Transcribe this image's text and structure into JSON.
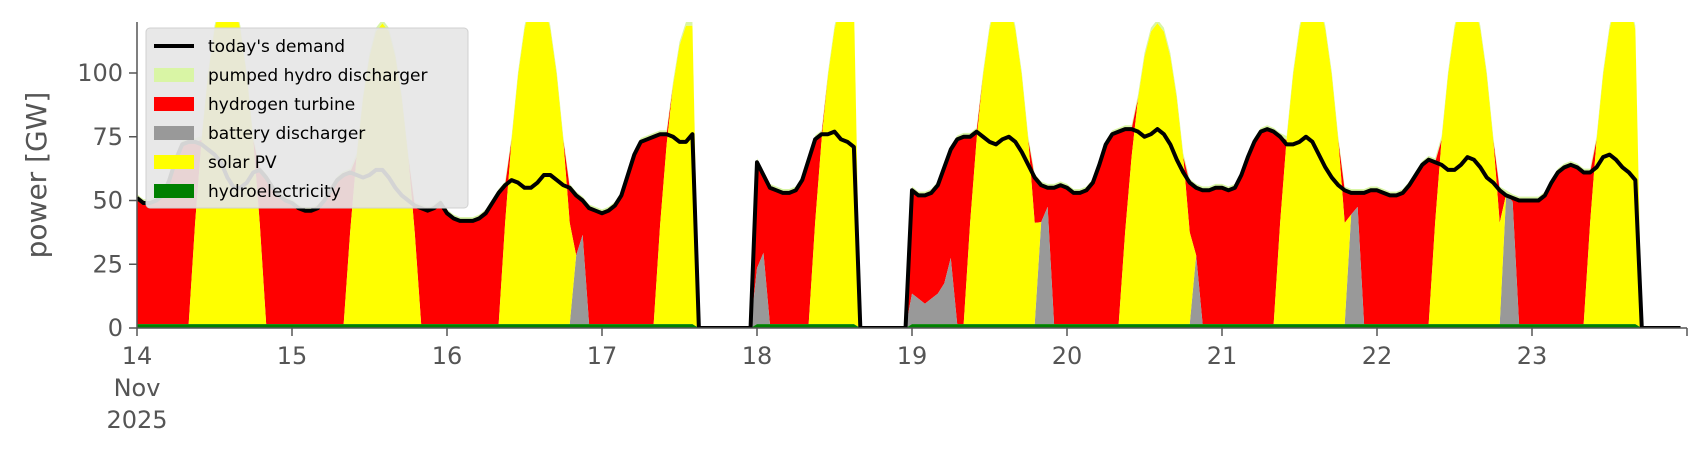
{
  "colors": {
    "demand": "#000000",
    "pumped_hydro": "#d9f5a5",
    "hydrogen": "#ff0000",
    "battery": "#999999",
    "solar": "#ffff00",
    "hydro": "#008000",
    "axis": "#555555",
    "legend_bg": "#e6e6e6"
  },
  "chart_data": {
    "type": "area",
    "ylabel": "power [GW]",
    "ylim": [
      0,
      120
    ],
    "xlim": [
      0,
      10
    ],
    "y_ticks": [
      0,
      25,
      50,
      75,
      100
    ],
    "y_tick_labels": [
      "0",
      "25",
      "50",
      "75",
      "100"
    ],
    "x_ticks": [
      0,
      1,
      2,
      3,
      4,
      5,
      6,
      7,
      8,
      9,
      10
    ],
    "x_tick_labels": [
      "14",
      "15",
      "16",
      "17",
      "18",
      "19",
      "20",
      "21",
      "22",
      "23",
      ""
    ],
    "x_tick_sublabels": [
      "Nov",
      "2025"
    ],
    "legend_position": "upper-left",
    "legend": [
      {
        "key": "demand",
        "label": "today's demand",
        "style": "line"
      },
      {
        "key": "pumped_hydro",
        "label": "pumped hydro discharger",
        "style": "patch"
      },
      {
        "key": "hydrogen",
        "label": "hydrogen turbine",
        "style": "patch"
      },
      {
        "key": "battery",
        "label": "battery discharger",
        "style": "patch"
      },
      {
        "key": "solar",
        "label": "solar PV",
        "style": "patch"
      },
      {
        "key": "hydro",
        "label": "hydroelectricity",
        "style": "patch"
      }
    ],
    "days": [
      {
        "day": "14",
        "x0": 0,
        "demand": [
          51,
          49,
          49,
          50,
          52,
          58,
          66,
          72,
          73,
          73,
          72,
          70,
          68,
          65,
          59,
          55,
          55,
          57,
          61,
          62,
          59,
          55,
          52,
          50
        ],
        "battery": [
          0,
          0,
          0,
          0,
          0,
          0,
          0,
          0,
          0,
          0,
          0,
          0,
          0,
          0,
          14,
          40,
          44,
          45,
          44,
          0,
          0,
          0,
          0,
          0
        ],
        "solar_peak": 130,
        "solar_start": 8,
        "solar_end": 20
      },
      {
        "day": "15",
        "x0": 1,
        "demand": [
          49,
          47,
          46,
          46,
          47,
          50,
          54,
          58,
          60,
          61,
          60,
          59,
          60,
          62,
          62,
          59,
          55,
          52,
          50,
          48,
          47,
          46,
          47,
          49
        ],
        "battery": [
          0,
          0,
          0,
          0,
          0,
          0,
          0,
          0,
          0,
          0,
          0,
          0,
          0,
          0,
          10,
          12,
          12,
          14,
          20,
          27,
          0,
          0,
          0,
          0
        ],
        "solar_peak": 118,
        "solar_start": 8,
        "solar_end": 20
      },
      {
        "day": "16",
        "x0": 2,
        "demand": [
          45,
          43,
          42,
          42,
          42,
          43,
          45,
          49,
          53,
          56,
          58,
          57,
          55,
          55,
          57,
          60,
          60,
          58,
          56,
          55,
          52,
          50,
          47,
          46
        ],
        "battery": [
          0,
          0,
          0,
          0,
          0,
          0,
          0,
          0,
          0,
          0,
          0,
          0,
          0,
          0,
          5,
          22,
          24,
          24,
          28,
          37,
          27,
          35,
          0,
          0
        ],
        "solar_peak": 130,
        "solar_start": 8,
        "solar_end": 20
      },
      {
        "day": "17",
        "x0": 3,
        "demand": [
          45,
          46,
          48,
          52,
          60,
          68,
          73,
          74,
          75,
          76,
          76,
          75,
          73,
          73,
          76,
          0,
          0,
          0,
          0,
          0,
          0,
          0,
          0,
          0
        ],
        "battery": [
          0,
          0,
          0,
          0,
          0,
          0,
          0,
          0,
          0,
          0,
          0,
          0,
          0,
          15,
          16,
          0,
          0,
          0,
          0,
          0,
          0,
          0,
          0,
          0
        ],
        "solar_peak": 118,
        "solar_start": 8,
        "solar_end": 19
      },
      {
        "day": "18",
        "x0": 4,
        "demand": [
          65,
          60,
          55,
          54,
          53,
          53,
          54,
          58,
          66,
          74,
          76,
          76,
          77,
          74,
          73,
          71,
          0,
          0,
          0,
          0,
          0,
          0,
          0,
          0
        ],
        "battery": [
          22,
          28,
          0,
          0,
          0,
          0,
          0,
          0,
          0,
          0,
          0,
          0,
          0,
          0,
          0,
          0,
          0,
          0,
          0,
          0,
          0,
          0,
          0,
          0
        ],
        "solar_peak": 130,
        "solar_start": 8,
        "solar_end": 20
      },
      {
        "day": "19",
        "x0": 5,
        "demand": [
          54,
          52,
          52,
          53,
          56,
          63,
          70,
          74,
          75,
          75,
          77,
          75,
          73,
          72,
          74,
          75,
          73,
          69,
          64,
          59,
          56,
          55,
          55,
          56
        ],
        "battery": [
          12,
          10,
          8,
          10,
          12,
          16,
          26,
          0,
          0,
          0,
          0,
          0,
          0,
          0,
          45,
          38,
          38,
          37,
          38,
          39,
          40,
          46,
          0,
          0
        ],
        "solar_peak": 130,
        "solar_start": 8,
        "solar_end": 20
      },
      {
        "day": "20",
        "x0": 6,
        "demand": [
          55,
          53,
          53,
          54,
          57,
          64,
          72,
          76,
          77,
          78,
          78,
          77,
          75,
          76,
          78,
          76,
          72,
          66,
          61,
          57,
          55,
          54,
          54,
          55
        ],
        "battery": [
          0,
          0,
          0,
          0,
          0,
          0,
          0,
          0,
          0,
          0,
          0,
          0,
          0,
          0,
          14,
          14,
          13,
          12,
          13,
          18,
          27,
          0,
          0,
          0
        ],
        "solar_peak": 118,
        "solar_start": 8,
        "solar_end": 20
      },
      {
        "day": "21",
        "x0": 7,
        "demand": [
          55,
          54,
          55,
          60,
          67,
          73,
          77,
          78,
          77,
          75,
          72,
          72,
          73,
          75,
          73,
          68,
          63,
          59,
          56,
          54,
          53,
          53,
          53,
          54
        ],
        "battery": [
          0,
          0,
          0,
          0,
          0,
          0,
          0,
          0,
          0,
          0,
          0,
          0,
          0,
          0,
          48,
          46,
          50,
          52,
          49,
          47,
          43,
          46,
          0,
          0
        ],
        "solar_peak": 130,
        "solar_start": 8,
        "solar_end": 20
      },
      {
        "day": "22",
        "x0": 8,
        "demand": [
          54,
          53,
          52,
          52,
          53,
          56,
          60,
          64,
          66,
          65,
          64,
          62,
          62,
          64,
          67,
          66,
          63,
          59,
          57,
          54,
          52,
          51,
          50,
          50
        ],
        "battery": [
          0,
          0,
          0,
          0,
          0,
          0,
          0,
          0,
          0,
          0,
          0,
          0,
          0,
          0,
          52,
          55,
          60,
          54,
          52,
          50,
          51,
          48,
          0,
          0
        ],
        "solar_peak": 130,
        "solar_start": 8,
        "solar_end": 20
      },
      {
        "day": "23",
        "x0": 9,
        "demand": [
          50,
          50,
          52,
          57,
          61,
          63,
          64,
          63,
          61,
          61,
          63,
          67,
          68,
          66,
          63,
          61,
          58,
          0,
          0,
          0,
          0,
          0,
          0,
          0
        ],
        "battery": [
          0,
          0,
          0,
          0,
          0,
          0,
          0,
          0,
          0,
          0,
          0,
          0,
          0,
          0,
          52,
          50,
          53,
          55,
          54,
          53,
          51,
          50,
          0,
          0
        ],
        "solar_peak": 130,
        "solar_start": 8,
        "solar_end": 20
      }
    ]
  }
}
